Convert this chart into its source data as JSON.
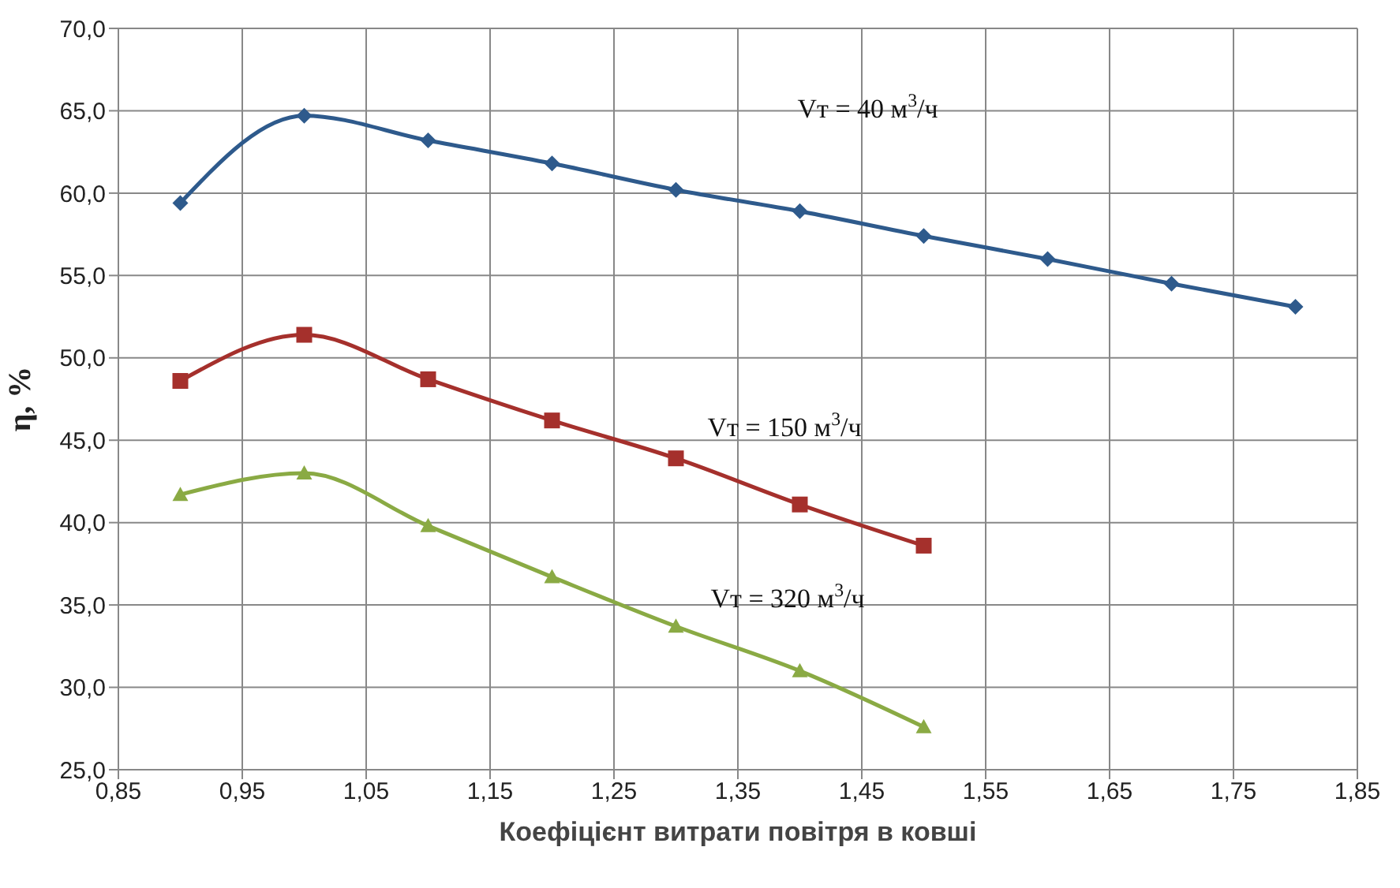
{
  "chart_data": {
    "type": "line",
    "xlabel": "Коефіцієнт витрати повітря в ковші",
    "ylabel": "η, %",
    "x": [
      0.9,
      1.0,
      1.1,
      1.2,
      1.3,
      1.4,
      1.5,
      1.6,
      1.7,
      1.8
    ],
    "series": [
      {
        "name": "Vт = 40 м$^{3}$/ч",
        "color": "#2e5a8c",
        "marker": "diamond",
        "values": [
          59.4,
          64.7,
          63.2,
          61.8,
          60.2,
          58.9,
          57.4,
          56.0,
          54.5,
          53.1
        ]
      },
      {
        "name": "Vт = 150 м$^{3}$/ч",
        "color": "#a5302c",
        "marker": "square",
        "values": [
          48.6,
          51.4,
          48.7,
          46.2,
          43.9,
          41.1,
          38.6,
          null,
          null,
          null
        ]
      },
      {
        "name": "Vт = 320 м$^{3}$/ч",
        "color": "#8aaa44",
        "marker": "triangle",
        "values": [
          41.7,
          43.0,
          39.8,
          36.7,
          33.7,
          31.0,
          27.6,
          null,
          null,
          null
        ]
      }
    ],
    "xlim": [
      0.85,
      1.85
    ],
    "xticks": [
      {
        "value": 0.85,
        "label": "0,85"
      },
      {
        "value": 0.95,
        "label": "0,95"
      },
      {
        "value": 1.05,
        "label": "1,05"
      },
      {
        "value": 1.15,
        "label": "1,15"
      },
      {
        "value": 1.25,
        "label": "1,25"
      },
      {
        "value": 1.35,
        "label": "1,35"
      },
      {
        "value": 1.45,
        "label": "1,45"
      },
      {
        "value": 1.55,
        "label": "1,55"
      },
      {
        "value": 1.65,
        "label": "1,65"
      },
      {
        "value": 1.75,
        "label": "1,75"
      },
      {
        "value": 1.85,
        "label": "1,85"
      }
    ],
    "ylim": [
      25,
      70
    ],
    "yticks": [
      {
        "value": 25,
        "label": "25,0"
      },
      {
        "value": 30,
        "label": "30,0"
      },
      {
        "value": 35,
        "label": "35,0"
      },
      {
        "value": 40,
        "label": "40,0"
      },
      {
        "value": 45,
        "label": "45,0"
      },
      {
        "value": 50,
        "label": "50,0"
      },
      {
        "value": 55,
        "label": "55,0"
      },
      {
        "value": 60,
        "label": "60,0"
      },
      {
        "value": 65,
        "label": "65,0"
      },
      {
        "value": 70,
        "label": "70,0"
      }
    ],
    "grid": true,
    "line_style": "solid"
  }
}
